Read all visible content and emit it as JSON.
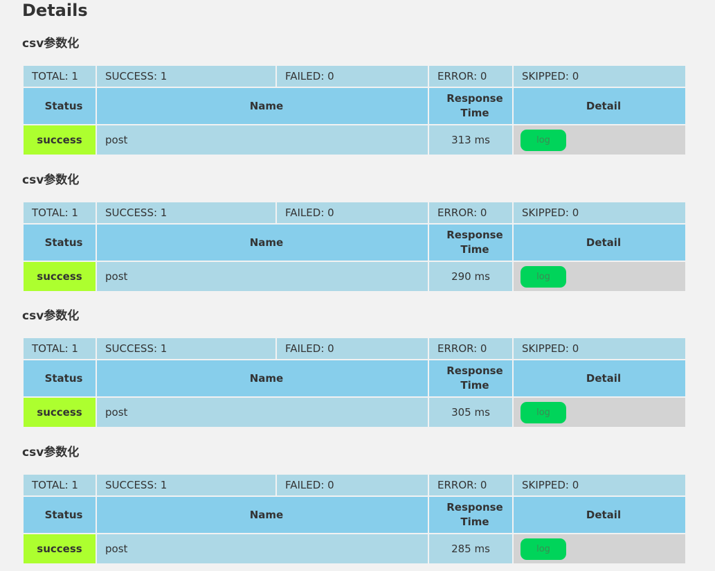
{
  "page": {
    "title": "Details"
  },
  "headers": {
    "status": "Status",
    "name": "Name",
    "response_time": "Response Time",
    "detail": "Detail"
  },
  "sections": [
    {
      "title": "csv参数化",
      "summary": {
        "total": "TOTAL: 1",
        "success": "SUCCESS: 1",
        "failed": "FAILED: 0",
        "error": "ERROR: 0",
        "skipped": "SKIPPED: 0"
      },
      "row": {
        "status": "success",
        "name": "post",
        "response_time": "313 ms",
        "log_label": "log"
      }
    },
    {
      "title": "csv参数化",
      "summary": {
        "total": "TOTAL: 1",
        "success": "SUCCESS: 1",
        "failed": "FAILED: 0",
        "error": "ERROR: 0",
        "skipped": "SKIPPED: 0"
      },
      "row": {
        "status": "success",
        "name": "post",
        "response_time": "290 ms",
        "log_label": "log"
      }
    },
    {
      "title": "csv参数化",
      "summary": {
        "total": "TOTAL: 1",
        "success": "SUCCESS: 1",
        "failed": "FAILED: 0",
        "error": "ERROR: 0",
        "skipped": "SKIPPED: 0"
      },
      "row": {
        "status": "success",
        "name": "post",
        "response_time": "305 ms",
        "log_label": "log"
      }
    },
    {
      "title": "csv参数化",
      "summary": {
        "total": "TOTAL: 1",
        "success": "SUCCESS: 1",
        "failed": "FAILED: 0",
        "error": "ERROR: 0",
        "skipped": "SKIPPED: 0"
      },
      "row": {
        "status": "success",
        "name": "post",
        "response_time": "285 ms",
        "log_label": "log"
      }
    }
  ],
  "colors": {
    "background": "#f2f2f2",
    "summary_bg": "#add8e6",
    "header_bg": "#87ceeb",
    "success_bg": "#adff2f",
    "detail_bg": "#d3d3d3",
    "log_button_bg": "#00d45a"
  }
}
